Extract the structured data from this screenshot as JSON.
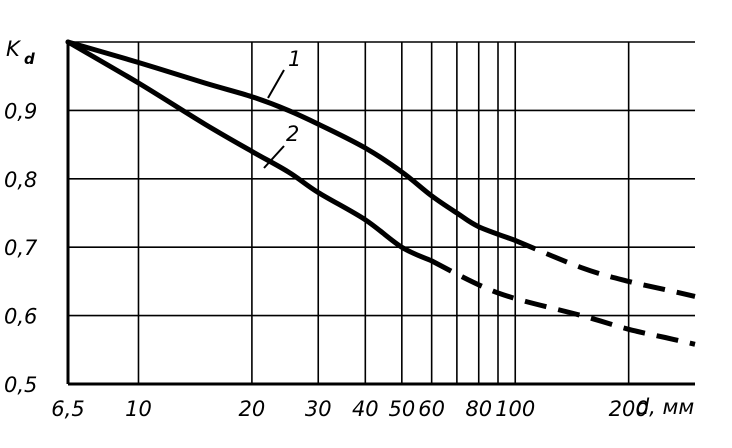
{
  "chart_data": {
    "type": "line",
    "title": "",
    "xlabel": "d, мм",
    "ylabel_main": "K",
    "ylabel_sub": "d",
    "x_scale": "log",
    "xlim": [
      6.5,
      300
    ],
    "ylim": [
      0.5,
      1.0
    ],
    "grid": true,
    "x_ticks": [
      {
        "value": 6.5,
        "label": "6,5"
      },
      {
        "value": 10,
        "label": "10"
      },
      {
        "value": 20,
        "label": "20"
      },
      {
        "value": 30,
        "label": "30"
      },
      {
        "value": 40,
        "label": "40"
      },
      {
        "value": 50,
        "label": "50"
      },
      {
        "value": 60,
        "label": "60"
      },
      {
        "value": 80,
        "label": "80"
      },
      {
        "value": 100,
        "label": "100"
      },
      {
        "value": 200,
        "label": "200"
      }
    ],
    "x_gridlines": [
      10,
      20,
      30,
      40,
      50,
      60,
      70,
      80,
      90,
      100,
      200
    ],
    "y_ticks": [
      {
        "value": 0.5,
        "label": "0,5"
      },
      {
        "value": 0.6,
        "label": "0,6"
      },
      {
        "value": 0.7,
        "label": "0,7"
      },
      {
        "value": 0.8,
        "label": "0,8"
      },
      {
        "value": 0.9,
        "label": "0,9"
      }
    ],
    "series": [
      {
        "name": "1",
        "solid": {
          "x": [
            6.5,
            10,
            15,
            20,
            25,
            30,
            40,
            50,
            60,
            70,
            80,
            100
          ],
          "y": [
            1.0,
            0.97,
            0.94,
            0.92,
            0.9,
            0.88,
            0.845,
            0.81,
            0.775,
            0.75,
            0.73,
            0.71
          ]
        },
        "dashed": {
          "x": [
            100,
            150,
            200,
            250,
            300
          ],
          "y": [
            0.71,
            0.67,
            0.65,
            0.638,
            0.628
          ]
        }
      },
      {
        "name": "2",
        "solid": {
          "x": [
            6.5,
            10,
            15,
            20,
            25,
            30,
            40,
            50,
            60
          ],
          "y": [
            1.0,
            0.94,
            0.88,
            0.84,
            0.81,
            0.78,
            0.74,
            0.7,
            0.68
          ]
        },
        "dashed": {
          "x": [
            60,
            80,
            100,
            150,
            200,
            250,
            300
          ],
          "y": [
            0.68,
            0.645,
            0.625,
            0.6,
            0.58,
            0.568,
            0.558
          ]
        }
      }
    ]
  }
}
